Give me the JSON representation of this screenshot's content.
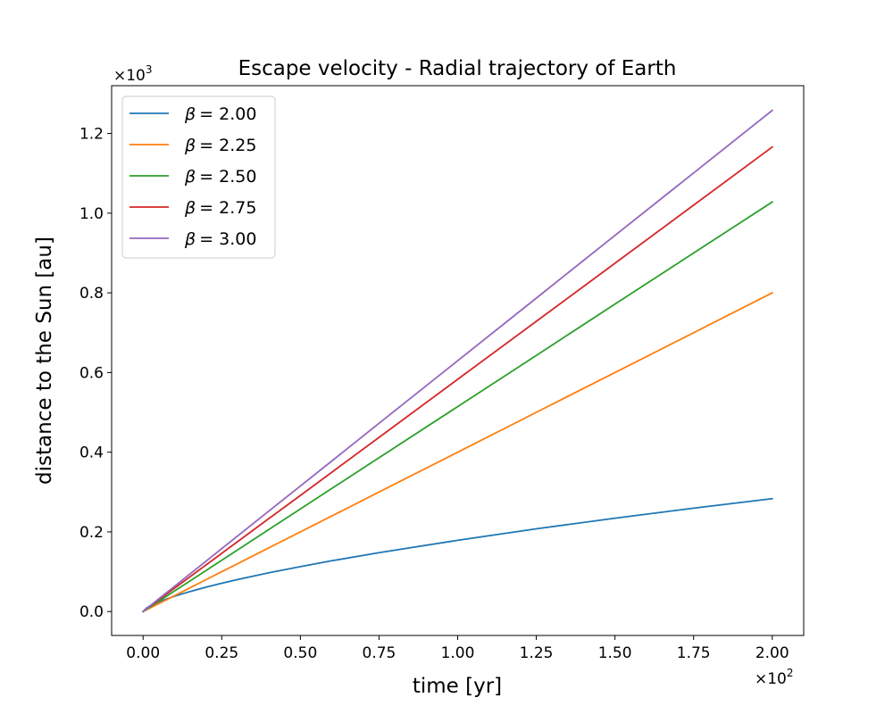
{
  "chart_data": {
    "type": "line",
    "title": "Escape velocity - Radial trajectory of Earth",
    "xlabel": "time [yr]",
    "ylabel": "distance to the Sun [au]",
    "x_multiplier_label": "×10",
    "x_multiplier_exp": "2",
    "y_multiplier_label": "×10",
    "y_multiplier_exp": "3",
    "x_scale": 100,
    "y_scale": 1000,
    "xlim": [
      -10,
      210
    ],
    "ylim": [
      -60,
      1320
    ],
    "x_ticks": [
      0,
      25,
      50,
      75,
      100,
      125,
      150,
      175,
      200
    ],
    "x_tick_labels": [
      "0.00",
      "0.25",
      "0.50",
      "0.75",
      "1.00",
      "1.25",
      "1.50",
      "1.75",
      "2.00"
    ],
    "y_ticks": [
      0,
      200,
      400,
      600,
      800,
      1000,
      1200
    ],
    "y_tick_labels": [
      "0.0",
      "0.2",
      "0.4",
      "0.6",
      "0.8",
      "1.0",
      "1.2"
    ],
    "grid": false,
    "legend_position": "top-left",
    "x": [
      0,
      1,
      2,
      5,
      10,
      15,
      20,
      25,
      30,
      40,
      50,
      60,
      75,
      100,
      125,
      150,
      175,
      200
    ],
    "series": [
      {
        "name": "β = 2.00",
        "legend_symbol": "β",
        "legend_value": "= 2.00",
        "color": "#1f77b4",
        "values": [
          0,
          8.3,
          13.2,
          24.3,
          38.6,
          50.5,
          61.2,
          71.0,
          80.2,
          97.2,
          112.8,
          127.4,
          147.6,
          178.9,
          207.6,
          234.3,
          259.5,
          283.5
        ]
      },
      {
        "name": "β = 2.25",
        "legend_symbol": "β",
        "legend_value": "= 2.25",
        "color": "#ff7f0e",
        "values": [
          0,
          4.0,
          8.0,
          20.0,
          40.0,
          60.0,
          80.0,
          100.0,
          120.0,
          160.0,
          200.0,
          240.0,
          300.0,
          400.0,
          500.0,
          600.0,
          700.0,
          800.0
        ]
      },
      {
        "name": "β = 2.50",
        "legend_symbol": "β",
        "legend_value": "= 2.50",
        "color": "#2ca02c",
        "values": [
          0,
          5.2,
          10.4,
          25.9,
          51.7,
          77.4,
          103.0,
          128.8,
          154.5,
          206.0,
          257.5,
          309.0,
          386.0,
          514.5,
          643.0,
          771.5,
          900.0,
          1028.0
        ]
      },
      {
        "name": "β = 2.75",
        "legend_symbol": "β",
        "legend_value": "= 2.75",
        "color": "#d62728",
        "values": [
          0,
          6.0,
          11.9,
          29.5,
          58.8,
          87.9,
          117.0,
          146.1,
          175.2,
          233.4,
          291.6,
          349.8,
          437.2,
          582.9,
          728.6,
          874.3,
          1020.0,
          1166.0
        ]
      },
      {
        "name": "β = 3.00",
        "legend_symbol": "β",
        "legend_value": "= 3.00",
        "color": "#9467bd",
        "values": [
          0,
          6.4,
          12.8,
          31.9,
          63.5,
          95.0,
          126.4,
          157.9,
          189.3,
          252.2,
          315.1,
          378.0,
          472.4,
          629.6,
          786.8,
          944.0,
          1101.0,
          1258.0
        ]
      }
    ]
  }
}
